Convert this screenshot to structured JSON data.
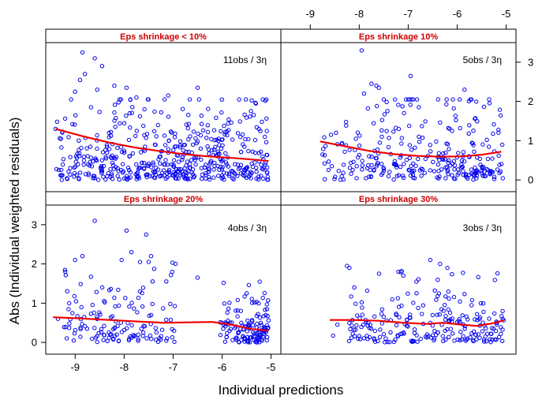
{
  "chart_data": {
    "type": "scatter",
    "xlabel": "Individual predictions",
    "ylabel": "Abs (Individual weighted residuals)",
    "xlim": [
      -9.6,
      -4.8
    ],
    "ylim": [
      -0.3,
      3.5
    ],
    "x_ticks": [
      -9,
      -8,
      -7,
      -6,
      -5
    ],
    "x_tick_labels": [
      "-9",
      "-8",
      "-7",
      "-6",
      "-5"
    ],
    "y_ticks": [
      0,
      1,
      2,
      3
    ],
    "y_tick_labels": [
      "0",
      "1",
      "2",
      "3"
    ],
    "grid": false,
    "layout": "2x2 panels",
    "marker_color": "#0000ee",
    "smooth_color": "#ee0000",
    "panels": [
      {
        "title": "Eps shrinkage < 10%",
        "annotation": "11obs / 3η",
        "smooth": [
          [
            -9.4,
            1.3
          ],
          [
            -8.8,
            1.1
          ],
          [
            -8.3,
            0.95
          ],
          [
            -7.8,
            0.83
          ],
          [
            -7.3,
            0.74
          ],
          [
            -6.8,
            0.66
          ],
          [
            -6.3,
            0.6
          ],
          [
            -5.8,
            0.56
          ],
          [
            -5.3,
            0.51
          ],
          [
            -5.05,
            0.48
          ]
        ],
        "cluster": {
          "xmin": -9.4,
          "xmax": -5.05,
          "n": 520,
          "scale": 0.75,
          "seed": 11
        },
        "points": [
          [
            -8.85,
            3.25
          ],
          [
            -8.8,
            2.7
          ],
          [
            -8.9,
            2.55
          ],
          [
            -8.6,
            3.1
          ],
          [
            -8.45,
            2.9
          ],
          [
            -8.55,
            2.3
          ],
          [
            -7.95,
            2.35
          ],
          [
            -8.2,
            2.4
          ],
          [
            -7.75,
            2.1
          ],
          [
            -6.5,
            2.35
          ],
          [
            -9.0,
            2.25
          ],
          [
            -7.1,
            2.15
          ],
          [
            -9.4,
            1.3
          ],
          [
            -9.1,
            0.3
          ]
        ]
      },
      {
        "title": "Eps shrinkage 10%",
        "annotation": "5obs / 3η",
        "smooth": [
          [
            -8.8,
            0.98
          ],
          [
            -8.3,
            0.86
          ],
          [
            -7.8,
            0.74
          ],
          [
            -7.3,
            0.66
          ],
          [
            -6.8,
            0.61
          ],
          [
            -6.3,
            0.59
          ],
          [
            -5.9,
            0.6
          ],
          [
            -5.5,
            0.64
          ],
          [
            -5.1,
            0.72
          ]
        ],
        "cluster": {
          "xmin": -8.8,
          "xmax": -5.05,
          "n": 300,
          "scale": 0.72,
          "seed": 5
        },
        "points": [
          [
            -7.95,
            3.3
          ],
          [
            -6.95,
            2.65
          ],
          [
            -7.75,
            2.45
          ],
          [
            -7.65,
            2.4
          ],
          [
            -7.6,
            2.35
          ],
          [
            -7.9,
            2.2
          ],
          [
            -5.85,
            2.3
          ],
          [
            -5.95,
            2.05
          ],
          [
            -7.5,
            2.05
          ],
          [
            -8.75,
            0.65
          ]
        ]
      },
      {
        "title": "Eps shrinkage 20%",
        "annotation": "4obs / 3η",
        "smooth": [
          [
            -9.45,
            0.64
          ],
          [
            -8.9,
            0.61
          ],
          [
            -8.3,
            0.57
          ],
          [
            -7.7,
            0.53
          ],
          [
            -7.2,
            0.5
          ],
          [
            -6.7,
            0.51
          ],
          [
            -6.2,
            0.52
          ],
          [
            -5.8,
            0.45
          ],
          [
            -5.4,
            0.34
          ],
          [
            -5.05,
            0.3
          ]
        ],
        "cluster_segments": [
          {
            "xmin": -9.35,
            "xmax": -6.95,
            "n": 140,
            "scale": 0.65,
            "seed": 4
          },
          {
            "xmin": -6.05,
            "xmax": -5.05,
            "n": 140,
            "scale": 0.45,
            "seed": 44
          }
        ],
        "points": [
          [
            -8.6,
            3.1
          ],
          [
            -7.95,
            2.85
          ],
          [
            -7.55,
            2.75
          ],
          [
            -7.45,
            2.2
          ],
          [
            -7.5,
            2.05
          ],
          [
            -9.0,
            2.1
          ],
          [
            -9.2,
            1.8
          ],
          [
            -8.85,
            2.2
          ],
          [
            -7.85,
            2.3
          ],
          [
            -8.05,
            2.1
          ],
          [
            -6.5,
            1.65
          ],
          [
            -6.95,
            2.0
          ],
          [
            -9.35,
            0.6
          ]
        ]
      },
      {
        "title": "Eps shrinkage 30%",
        "annotation": "3obs / 3η",
        "smooth": [
          [
            -8.6,
            0.57
          ],
          [
            -8.1,
            0.57
          ],
          [
            -7.6,
            0.55
          ],
          [
            -7.1,
            0.5
          ],
          [
            -6.6,
            0.47
          ],
          [
            -6.3,
            0.5
          ],
          [
            -5.9,
            0.45
          ],
          [
            -5.6,
            0.42
          ],
          [
            -5.3,
            0.48
          ],
          [
            -5.05,
            0.56
          ]
        ],
        "cluster": {
          "xmin": -8.6,
          "xmax": -5.05,
          "n": 230,
          "scale": 0.55,
          "seed": 3
        },
        "points": [
          [
            -8.25,
            1.95
          ],
          [
            -8.2,
            1.9
          ],
          [
            -6.55,
            2.1
          ],
          [
            -6.35,
            2.0
          ],
          [
            -6.2,
            1.9
          ],
          [
            -7.2,
            1.8
          ],
          [
            -7.1,
            1.7
          ],
          [
            -8.1,
            1.4
          ]
        ]
      }
    ]
  }
}
